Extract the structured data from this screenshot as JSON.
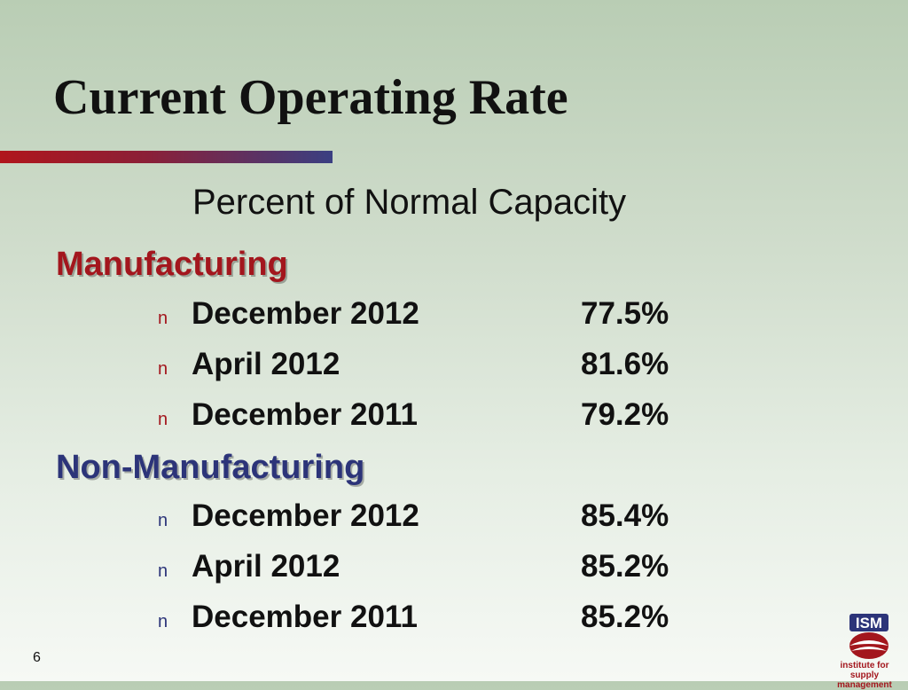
{
  "slide": {
    "title": "Current Operating Rate",
    "subtitle": "Percent of Normal Capacity",
    "page_number": "6"
  },
  "bullet_glyph": "n",
  "sections": [
    {
      "heading": "Manufacturing",
      "color": "#a3161d",
      "rows": [
        {
          "label": "December 2012",
          "value": "77.5%"
        },
        {
          "label": "April 2012",
          "value": "81.6%"
        },
        {
          "label": "December 2011",
          "value": "79.2%"
        }
      ]
    },
    {
      "heading": "Non-Manufacturing",
      "color": "#2c3479",
      "rows": [
        {
          "label": "December 2012",
          "value": "85.4%"
        },
        {
          "label": "April 2012",
          "value": "85.2%"
        },
        {
          "label": "December 2011",
          "value": "85.2%"
        }
      ]
    }
  ],
  "logo": {
    "name": "ISM",
    "mark": "ISM",
    "tagline_line1": "institute for",
    "tagline_line2": "supply management"
  }
}
